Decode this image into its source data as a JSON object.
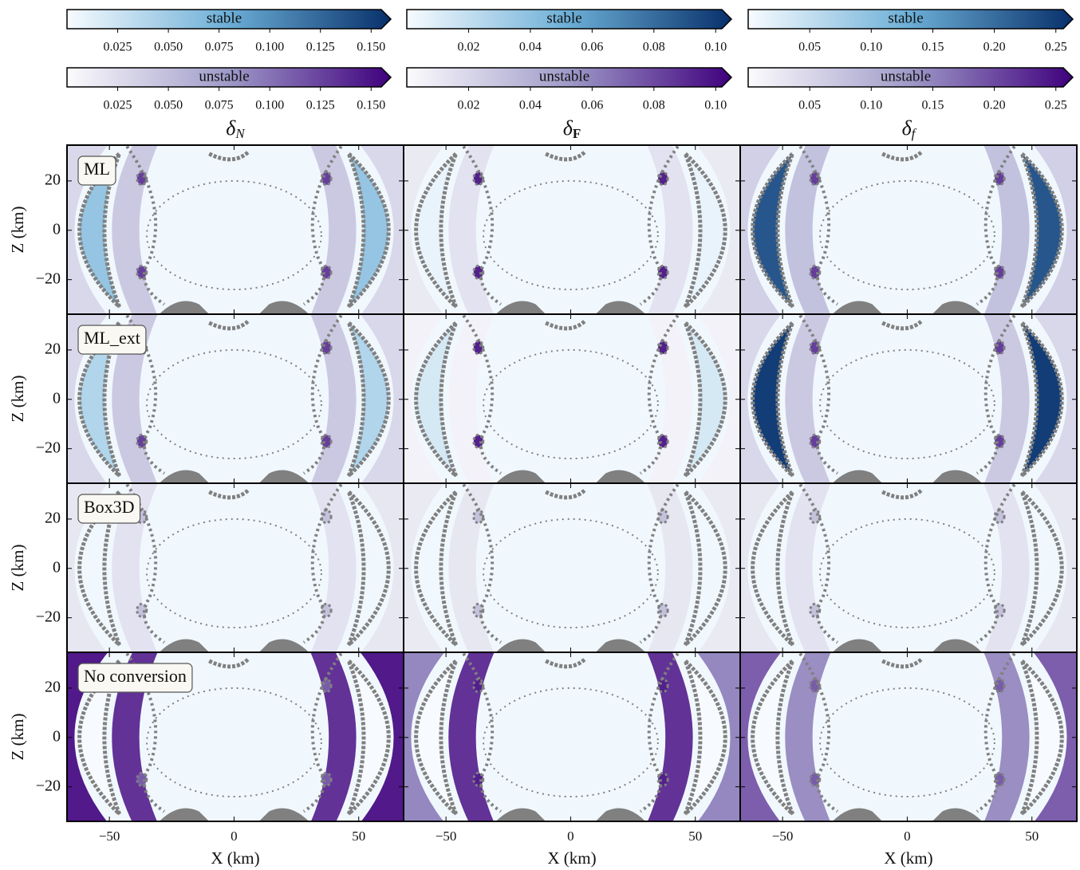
{
  "chart_data": {
    "type": "heatmap-grid",
    "column_titles": [
      {
        "symbol": "δ",
        "sub": "N"
      },
      {
        "symbol": "δ",
        "sub": "F"
      },
      {
        "symbol": "δ",
        "sub": "f"
      }
    ],
    "row_labels": [
      "ML",
      "ML_ext",
      "Box3D",
      "No conversion"
    ],
    "xlabel": "X (km)",
    "ylabel": "Z (km)",
    "xlim": [
      -67,
      68
    ],
    "ylim": [
      -34,
      34.5
    ],
    "xticks": [
      {
        "value": -50,
        "label": "−50"
      },
      0,
      50
    ],
    "yticks": [
      {
        "value": -20,
        "label": "−20"
      },
      0,
      20
    ],
    "colorbars": [
      {
        "stable_label": "stable",
        "unstable_label": "unstable",
        "lim": [
          0,
          0.155
        ],
        "ticks": [
          0.025,
          {
            "value": 0.05,
            "label": "0.050"
          },
          0.075,
          {
            "value": 0.1,
            "label": "0.100"
          },
          0.125,
          {
            "value": 0.15,
            "label": "0.150"
          }
        ]
      },
      {
        "stable_label": "stable",
        "unstable_label": "unstable",
        "lim": [
          0,
          0.102
        ],
        "ticks": [
          0.02,
          0.04,
          0.06,
          0.08,
          {
            "value": 0.1,
            "label": "0.10"
          }
        ]
      },
      {
        "stable_label": "stable",
        "unstable_label": "unstable",
        "lim": [
          0,
          0.256
        ],
        "ticks": [
          0.05,
          {
            "value": 0.1,
            "label": "0.10"
          },
          0.15,
          {
            "value": 0.2,
            "label": "0.20"
          },
          0.25
        ]
      }
    ],
    "stable_colors": [
      "#f7fbff",
      "#6baed6",
      "#08306b"
    ],
    "unstable_colors": [
      "#fcfbfd",
      "#9e9ac8",
      "#3f007d"
    ],
    "contour_color": "#808080"
  }
}
